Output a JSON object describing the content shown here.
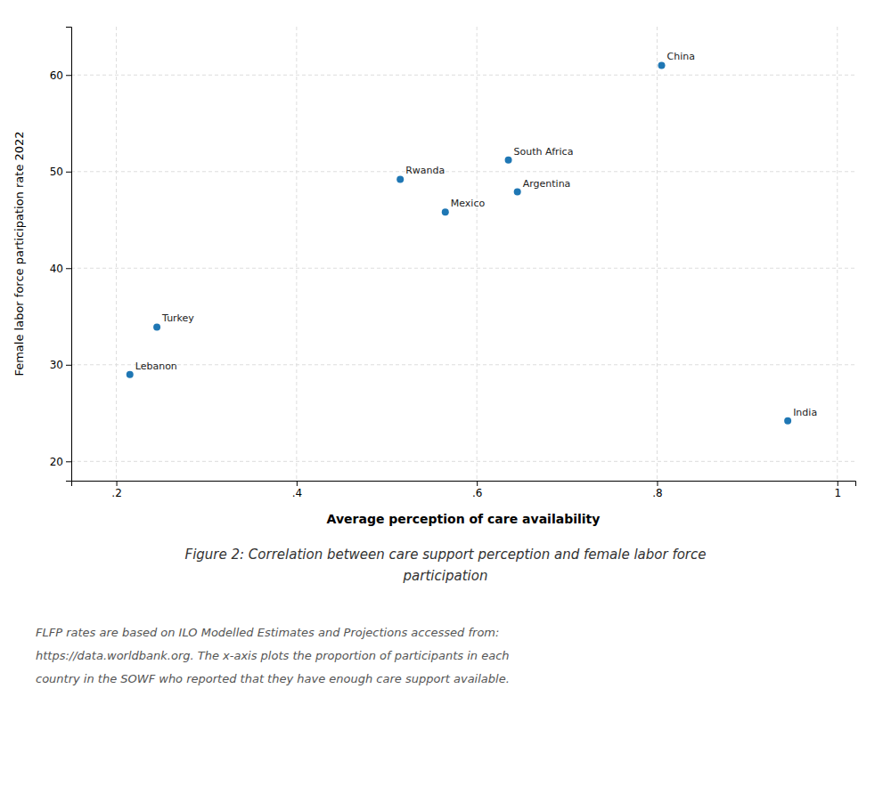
{
  "chart_data": {
    "type": "scatter",
    "title": [
      "Figure 2: Correlation between care support perception and female labor force",
      "participation"
    ],
    "xlabel": "Average perception of care availability",
    "ylabel": "Female labor force participation rate 2022",
    "labels": [
      "China",
      "South Africa",
      "Rwanda",
      "Argentina",
      "Mexico",
      "Turkey",
      "Lebanon",
      "India"
    ],
    "x": [
      0.805,
      0.635,
      0.515,
      0.645,
      0.565,
      0.245,
      0.215,
      0.945
    ],
    "y": [
      61.0,
      51.2,
      49.2,
      47.9,
      45.8,
      33.9,
      29.0,
      24.2
    ],
    "xlim": [
      0.15,
      1.02
    ],
    "ylim": [
      18,
      65
    ],
    "xticks": [
      {
        "value": 0.2,
        "label": ".2"
      },
      {
        "value": 0.4,
        "label": ".4"
      },
      {
        "value": 0.6,
        "label": ".6"
      },
      {
        "value": 0.8,
        "label": ".8"
      },
      1
    ],
    "yticks": [
      20,
      30,
      40,
      50,
      60
    ],
    "grid": true,
    "footnote": [
      "FLFP rates are based on ILO Modelled Estimates and Projections accessed from:",
      "https://data.worldbank.org.  The x-axis plots the proportion of participants in each",
      "country in the SOWF who reported that they have enough care support available."
    ]
  }
}
